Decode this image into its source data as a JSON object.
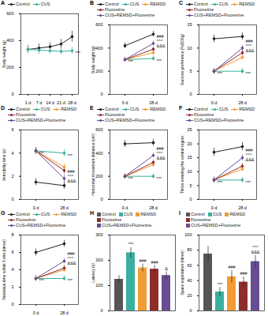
{
  "chart_data": [
    {
      "panel": "A",
      "type": "line",
      "y_label": "Body weight (g)",
      "marker": "circle",
      "x": [
        "1 d",
        "7 d",
        "14 d",
        "21 d",
        "28 d"
      ],
      "ylim": [
        0,
        600
      ],
      "yticks": [
        0,
        200,
        400,
        600
      ],
      "series": [
        {
          "name": "Control",
          "color": "#222222",
          "values": [
            335,
            345,
            355,
            375,
            430
          ],
          "errors": [
            30,
            30,
            30,
            35,
            40
          ]
        },
        {
          "name": "CUS",
          "color": "#3aaf9f",
          "values": [
            335,
            330,
            325,
            320,
            325
          ],
          "errors": [
            30,
            30,
            25,
            25,
            25
          ]
        }
      ],
      "annotations": [
        {
          "x": "28 d",
          "series": "CUS",
          "text": "***"
        }
      ]
    },
    {
      "panel": "B",
      "type": "line",
      "y_label": "Body weight (g)",
      "marker": "circle",
      "x": [
        "0 d",
        "28 d"
      ],
      "ylim": [
        0,
        600
      ],
      "yticks": [
        0,
        200,
        400,
        600
      ],
      "series": [
        {
          "name": "Control",
          "color": "#222222",
          "values": [
            420,
            520
          ],
          "errors": [
            25,
            25
          ]
        },
        {
          "name": "CUS",
          "color": "#3aaf9f",
          "values": [
            300,
            310
          ],
          "errors": [
            20,
            20
          ]
        },
        {
          "name": "REMSD",
          "color": "#f39c34",
          "values": [
            300,
            360
          ],
          "errors": [
            20,
            20
          ]
        },
        {
          "name": "Fluoxetine",
          "color": "#8e2c2c",
          "values": [
            300,
            390
          ],
          "errors": [
            20,
            20
          ]
        },
        {
          "name": "CUS+REMSD+Fluoxetine",
          "color": "#6a4c93",
          "values": [
            300,
            440
          ],
          "errors": [
            20,
            20
          ]
        }
      ],
      "annotations": [
        {
          "x": "0 d",
          "series": "CUS",
          "text": "***"
        },
        {
          "x": "28 d",
          "series": "CUS",
          "text": "***"
        },
        {
          "x": "28 d",
          "series": "CUS+REMSD+Fluoxetine",
          "text": "&&&"
        },
        {
          "x": "28 d",
          "series": "CUS+REMSD+Fluoxetine",
          "text": "^^^"
        },
        {
          "x": "28 d",
          "series": "CUS+REMSD+Fluoxetine",
          "text": "###"
        }
      ]
    },
    {
      "panel": "C",
      "type": "line",
      "y_label": "Sucrose preference (%/100g)",
      "marker": "circle",
      "x": [
        "0 d",
        "28 d"
      ],
      "ylim": [
        0,
        15
      ],
      "yticks": [
        0,
        5,
        10,
        15
      ],
      "series": [
        {
          "name": "Control",
          "color": "#222222",
          "values": [
            12,
            12.5
          ],
          "errors": [
            0.8,
            0.8
          ]
        },
        {
          "name": "CUS",
          "color": "#3aaf9f",
          "values": [
            5,
            5
          ],
          "errors": [
            0.6,
            0.6
          ]
        },
        {
          "name": "REMSD",
          "color": "#f39c34",
          "values": [
            5,
            8
          ],
          "errors": [
            0.6,
            0.6
          ]
        },
        {
          "name": "Fluoxetine",
          "color": "#8e2c2c",
          "values": [
            5,
            9
          ],
          "errors": [
            0.6,
            0.6
          ]
        },
        {
          "name": "CUS+REMSD+Fluoxetine",
          "color": "#6a4c93",
          "values": [
            5,
            10
          ],
          "errors": [
            0.6,
            0.6
          ]
        }
      ],
      "annotations": [
        {
          "x": "0 d",
          "series": "CUS",
          "text": "***"
        },
        {
          "x": "28 d",
          "series": "CUS",
          "text": "***"
        },
        {
          "x": "28 d",
          "series": "CUS+REMSD+Fluoxetine",
          "text": "&&&"
        },
        {
          "x": "28 d",
          "series": "CUS+REMSD+Fluoxetine",
          "text": "^^^"
        },
        {
          "x": "28 d",
          "series": "CUS+REMSD+Fluoxetine",
          "text": "###"
        }
      ]
    },
    {
      "panel": "D",
      "type": "line",
      "y_label": "Immobility time (s)",
      "marker": "circle",
      "x": [
        "0 d",
        "28 d"
      ],
      "ylim": [
        0,
        6
      ],
      "yticks": [
        0,
        2,
        4,
        6
      ],
      "series": [
        {
          "name": "Control",
          "color": "#222222",
          "values": [
            1.5,
            1.2
          ],
          "errors": [
            0.3,
            0.3
          ]
        },
        {
          "name": "CUS",
          "color": "#3aaf9f",
          "values": [
            4.2,
            4.0
          ],
          "errors": [
            0.3,
            0.3
          ]
        },
        {
          "name": "REMSD",
          "color": "#f39c34",
          "values": [
            4.2,
            2.8
          ],
          "errors": [
            0.3,
            0.3
          ]
        },
        {
          "name": "Fluoxetine",
          "color": "#8e2c2c",
          "values": [
            4.2,
            2.5
          ],
          "errors": [
            0.3,
            0.3
          ]
        },
        {
          "name": "CUS+REMSD+Fluoxetine",
          "color": "#6a4c93",
          "values": [
            4.2,
            1.8
          ],
          "errors": [
            0.3,
            0.3
          ]
        }
      ],
      "annotations": [
        {
          "x": "0 d",
          "series": "CUS",
          "text": "***"
        },
        {
          "x": "28 d",
          "series": "CUS",
          "text": "***"
        },
        {
          "x": "28 d",
          "series": "CUS+REMSD+Fluoxetine",
          "text": "&&&"
        },
        {
          "x": "28 d",
          "series": "CUS+REMSD+Fluoxetine",
          "text": "^^^"
        },
        {
          "x": "28 d",
          "series": "CUS+REMSD+Fluoxetine",
          "text": "###"
        }
      ]
    },
    {
      "panel": "E",
      "type": "line",
      "y_label": "Horizontal movement distance (cm)",
      "marker": "circle",
      "x": [
        "0 d",
        "28 d"
      ],
      "ylim": [
        0,
        600
      ],
      "yticks": [
        0,
        200,
        400,
        600
      ],
      "series": [
        {
          "name": "Control",
          "color": "#222222",
          "values": [
            480,
            490
          ],
          "errors": [
            30,
            30
          ]
        },
        {
          "name": "CUS",
          "color": "#3aaf9f",
          "values": [
            200,
            200
          ],
          "errors": [
            20,
            20
          ]
        },
        {
          "name": "REMSD",
          "color": "#f39c34",
          "values": [
            200,
            300
          ],
          "errors": [
            20,
            20
          ]
        },
        {
          "name": "Fluoxetine",
          "color": "#8e2c2c",
          "values": [
            200,
            320
          ],
          "errors": [
            20,
            20
          ]
        },
        {
          "name": "CUS+REMSD+Fluoxetine",
          "color": "#6a4c93",
          "values": [
            200,
            380
          ],
          "errors": [
            20,
            20
          ]
        }
      ],
      "annotations": [
        {
          "x": "0 d",
          "series": "CUS",
          "text": "***"
        },
        {
          "x": "28 d",
          "series": "CUS",
          "text": "***"
        },
        {
          "x": "28 d",
          "series": "CUS+REMSD+Fluoxetine",
          "text": "&&&"
        },
        {
          "x": "28 d",
          "series": "CUS+REMSD+Fluoxetine",
          "text": "^^^"
        },
        {
          "x": "28 d",
          "series": "CUS+REMSD+Fluoxetine",
          "text": "###"
        }
      ]
    },
    {
      "panel": "F",
      "type": "line",
      "y_label": "Times entering the central region",
      "marker": "circle",
      "x": [
        "0 d",
        "28 d"
      ],
      "ylim": [
        0,
        25
      ],
      "yticks": [
        0,
        5,
        10,
        15,
        20,
        25
      ],
      "series": [
        {
          "name": "Control",
          "color": "#222222",
          "values": [
            17,
            19
          ],
          "errors": [
            1.5,
            1.5
          ]
        },
        {
          "name": "CUS",
          "color": "#3aaf9f",
          "values": [
            7,
            7
          ],
          "errors": [
            1,
            1
          ]
        },
        {
          "name": "REMSD",
          "color": "#f39c34",
          "values": [
            7,
            11
          ],
          "errors": [
            1,
            1
          ]
        },
        {
          "name": "Fluoxetine",
          "color": "#8e2c2c",
          "values": [
            7,
            12
          ],
          "errors": [
            1,
            1
          ]
        },
        {
          "name": "CUS+REMSD+Fluoxetine",
          "color": "#6a4c93",
          "values": [
            7,
            15
          ],
          "errors": [
            1,
            1
          ]
        }
      ],
      "annotations": [
        {
          "x": "0 d",
          "series": "CUS",
          "text": "***"
        },
        {
          "x": "28 d",
          "series": "CUS",
          "text": "***"
        },
        {
          "x": "28 d",
          "series": "CUS+REMSD+Fluoxetine",
          "text": "&&&"
        },
        {
          "x": "28 d",
          "series": "CUS+REMSD+Fluoxetine",
          "text": "^^^"
        },
        {
          "x": "28 d",
          "series": "CUS+REMSD+Fluoxetine",
          "text": "###"
        }
      ]
    },
    {
      "panel": "G",
      "type": "line",
      "y_label": "Retention time within 5 min (times)",
      "marker": "circle",
      "x": [
        "0 d",
        "28 d"
      ],
      "ylim": [
        0,
        8
      ],
      "yticks": [
        0,
        2,
        4,
        6,
        8
      ],
      "series": [
        {
          "name": "Control",
          "color": "#222222",
          "values": [
            6,
            7
          ],
          "errors": [
            0.4,
            0.4
          ]
        },
        {
          "name": "CUS",
          "color": "#3aaf9f",
          "values": [
            3,
            3
          ],
          "errors": [
            0.3,
            0.3
          ]
        },
        {
          "name": "REMSD",
          "color": "#f39c34",
          "values": [
            3,
            4
          ],
          "errors": [
            0.3,
            0.3
          ]
        },
        {
          "name": "Fluoxetine",
          "color": "#8e2c2c",
          "values": [
            3,
            4.2
          ],
          "errors": [
            0.3,
            0.3
          ]
        },
        {
          "name": "CUS+REMSD+Fluoxetine",
          "color": "#6a4c93",
          "values": [
            3,
            5
          ],
          "errors": [
            0.3,
            0.3
          ]
        }
      ],
      "annotations": [
        {
          "x": "0 d",
          "series": "CUS",
          "text": "***"
        },
        {
          "x": "28 d",
          "series": "CUS",
          "text": "***"
        },
        {
          "x": "28 d",
          "series": "CUS+REMSD+Fluoxetine",
          "text": "&&&"
        },
        {
          "x": "28 d",
          "series": "CUS+REMSD+Fluoxetine",
          "text": "^^^"
        },
        {
          "x": "28 d",
          "series": "CUS+REMSD+Fluoxetine",
          "text": "###"
        }
      ]
    },
    {
      "panel": "H",
      "type": "bar",
      "y_label": "Latency (s)",
      "tick_labels": "y",
      "categories": [
        "Control",
        "CUS",
        "REMSD",
        "Fluoxetine",
        "CUS+REMSD+Fluoxetine"
      ],
      "values": [
        125,
        230,
        170,
        165,
        140
      ],
      "errors": [
        15,
        20,
        15,
        15,
        15
      ],
      "colors": [
        "#555555",
        "#3aaf9f",
        "#f39c34",
        "#8e2c2c",
        "#6a4c93"
      ],
      "ylim": [
        0,
        300
      ],
      "yticks": [
        0,
        100,
        200,
        300
      ],
      "annotations": [
        {
          "category": "CUS",
          "text": "***"
        },
        {
          "category": "REMSD",
          "text": "###"
        },
        {
          "category": "Fluoxetine",
          "text": "###"
        },
        {
          "category": "CUS+REMSD+Fluoxetine",
          "text": "&"
        }
      ]
    },
    {
      "panel": "I",
      "type": "bar",
      "y_label": "Space exploration (times)",
      "tick_labels": "y",
      "categories": [
        "Control",
        "CUS",
        "REMSD",
        "Fluoxetine",
        "CUS+REMSD+Fluoxetine"
      ],
      "values": [
        75,
        25,
        45,
        38,
        65
      ],
      "errors": [
        10,
        6,
        8,
        7,
        8
      ],
      "colors": [
        "#555555",
        "#3aaf9f",
        "#f39c34",
        "#8e2c2c",
        "#6a4c93"
      ],
      "ylim": [
        0,
        100
      ],
      "yticks": [
        0,
        20,
        40,
        60,
        80,
        100
      ],
      "annotations": [
        {
          "category": "CUS",
          "text": "***"
        },
        {
          "category": "REMSD",
          "text": "###"
        },
        {
          "category": "Fluoxetine",
          "text": "###"
        },
        {
          "category": "CUS+REMSD+Fluoxetine",
          "text": "&&&"
        },
        {
          "category": "CUS+REMSD+Fluoxetine",
          "text": "^^^"
        }
      ]
    }
  ]
}
